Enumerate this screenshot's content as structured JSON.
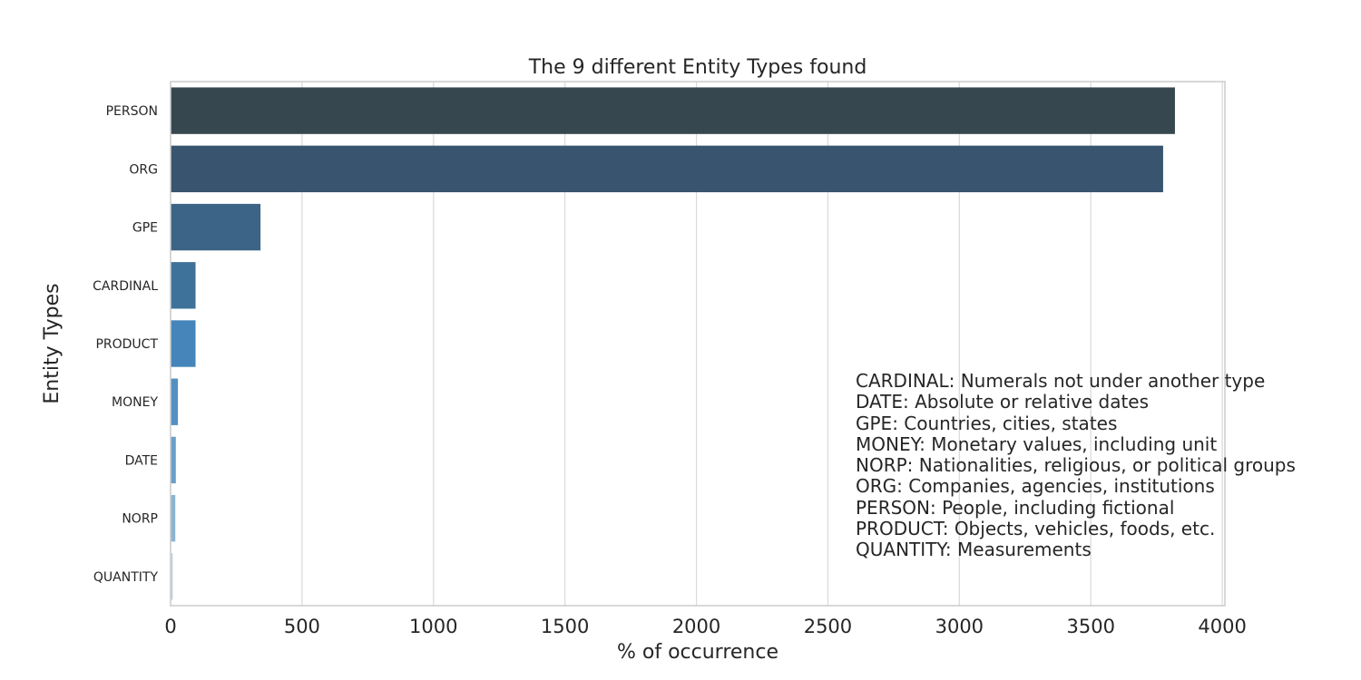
{
  "chart_data": {
    "type": "bar",
    "orientation": "horizontal",
    "title": "The 9 different Entity Types found",
    "xlabel": "% of occurrence",
    "ylabel": "Entity Types",
    "categories": [
      "PERSON",
      "ORG",
      "GPE",
      "CARDINAL",
      "PRODUCT",
      "MONEY",
      "DATE",
      "NORP",
      "QUANTITY"
    ],
    "values": [
      3820,
      3775,
      342,
      95,
      95,
      28,
      20,
      18,
      8
    ],
    "xlim": [
      0,
      4010
    ],
    "xticks": [
      0,
      500,
      1000,
      1500,
      2000,
      2500,
      3000,
      3500,
      4000
    ],
    "grid": "x",
    "colors": [
      "#37474f",
      "#38546e",
      "#3b6486",
      "#3f729a",
      "#4585b9",
      "#5390c2",
      "#6a9fc8",
      "#8bb4d3",
      "#bcd1e4"
    ],
    "annotation": [
      "CARDINAL: Numerals not under another type",
      "DATE: Absolute or relative dates",
      "GPE: Countries, cities, states",
      "MONEY: Monetary values, including unit",
      "NORP: Nationalities, religious, or political groups",
      "ORG: Companies, agencies, institutions",
      "PERSON: People, including fictional",
      "PRODUCT: Objects, vehicles, foods, etc.",
      "QUANTITY: Measurements"
    ]
  }
}
